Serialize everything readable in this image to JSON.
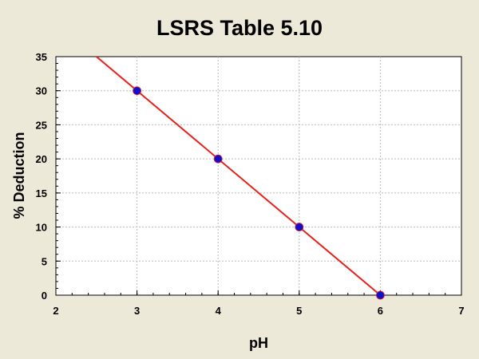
{
  "chart_data": {
    "type": "scatter",
    "title": "LSRS Table 5.10",
    "xlabel": "pH",
    "ylabel": "% Deduction",
    "xlim": [
      2,
      7
    ],
    "ylim": [
      0,
      35
    ],
    "x_ticks": [
      2,
      3,
      4,
      5,
      6,
      7
    ],
    "y_ticks": [
      0,
      5,
      10,
      15,
      20,
      25,
      30,
      35
    ],
    "grid": true,
    "series": [
      {
        "type": "scatter",
        "x": [
          3,
          4,
          5,
          6
        ],
        "y": [
          30,
          20,
          10,
          0
        ]
      },
      {
        "type": "line",
        "x": [
          2.5,
          6
        ],
        "y": [
          35,
          0
        ]
      }
    ],
    "colors": {
      "background": "#ECE9D8",
      "plot_background": "#FFFFFF",
      "grid": "#BBBBBB",
      "points": "#1010CC",
      "fit_line": "#E8201A"
    }
  }
}
